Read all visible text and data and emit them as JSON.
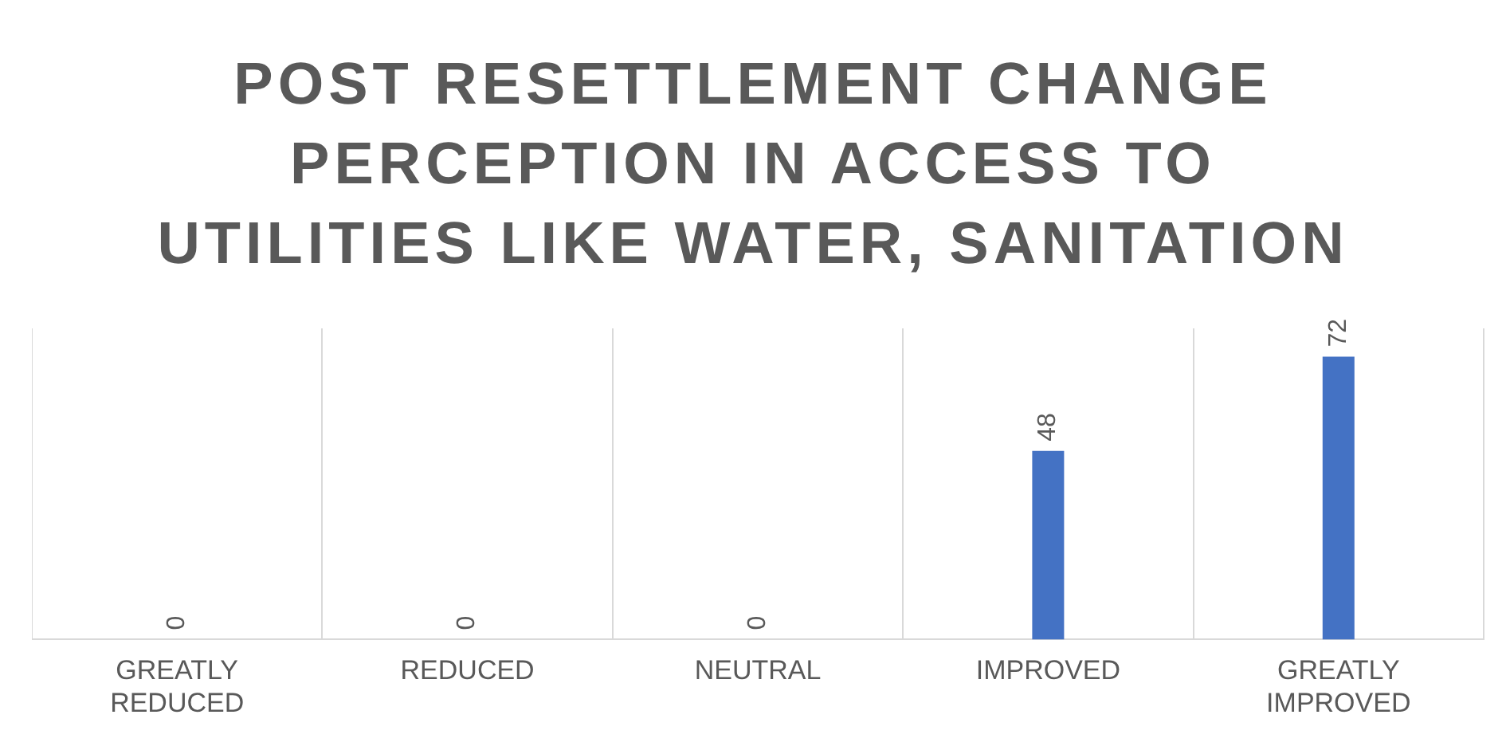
{
  "chart_data": {
    "type": "bar",
    "title": "POST RESETTLEMENT CHANGE PERCEPTION IN ACCESS TO UTILITIES LIKE WATER, SANITATION",
    "categories": [
      "GREATLY REDUCED",
      "REDUCED",
      "NEUTRAL",
      "IMPROVED",
      "GREATLY IMPROVED"
    ],
    "values": [
      0,
      0,
      0,
      48,
      72
    ],
    "color": "#4472c4",
    "data_labels": true,
    "grid": "x",
    "legend": false
  }
}
